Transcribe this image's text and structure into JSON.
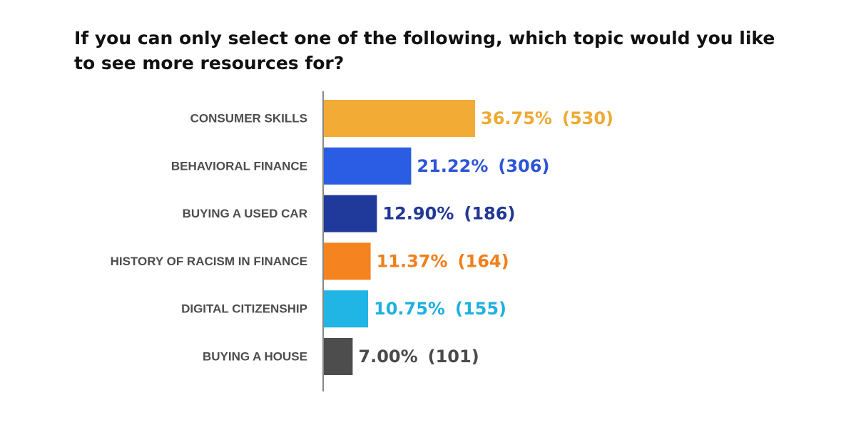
{
  "chart_data": {
    "type": "bar",
    "orientation": "horizontal",
    "title": "If you can only select one of the following, which topic would you like to see more resources for?",
    "categories": [
      "CONSUMER SKILLS",
      "BEHAVIORAL FINANCE",
      "BUYING A USED CAR",
      "HISTORY OF RACISM IN FINANCE",
      "DIGITAL CITIZENSHIP",
      "BUYING A HOUSE"
    ],
    "values": [
      36.75,
      21.22,
      12.9,
      11.37,
      10.75,
      7.0
    ],
    "counts": [
      530,
      306,
      186,
      164,
      155,
      101
    ],
    "percent_labels": [
      "36.75%",
      "21.22%",
      "12.90%",
      "11.37%",
      "10.75%",
      "7.00%"
    ],
    "count_labels": [
      "(530)",
      "(306)",
      "(186)",
      "(164)",
      "(155)",
      "(101)"
    ],
    "colors": [
      "#F2AC35",
      "#2A5DE3",
      "#1F3A9A",
      "#F5831F",
      "#21B5E6",
      "#4D4D4D"
    ],
    "value_label_colors": [
      "#EEAA34",
      "#2D55D8",
      "#213894",
      "#F07F1C",
      "#1FB0E1",
      "#4A4A4A"
    ],
    "axis_color": "#888888",
    "grid": false,
    "legend": "none"
  }
}
